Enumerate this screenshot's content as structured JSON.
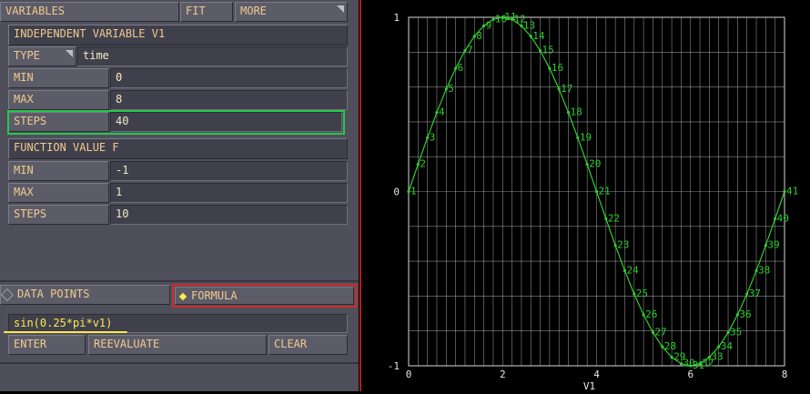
{
  "colors": {
    "panel": "#4f4f5b",
    "text": "#f2c98d",
    "plot_line": "#2fd02f",
    "grid": "#bdbdbd",
    "highlight_green": "#25c74a",
    "highlight_red": "#d22a2a"
  },
  "header": {
    "title": "VARIABLES",
    "fit_label": "FIT",
    "more_label": "MORE"
  },
  "independent": {
    "section_label": "INDEPENDENT VARIABLE V1",
    "type_label": "TYPE",
    "type_value": "time",
    "min_label": "MIN",
    "min_value": "0",
    "max_label": "MAX",
    "max_value": "8",
    "steps_label": "STEPS",
    "steps_value": "40"
  },
  "function": {
    "section_label": "FUNCTION VALUE F",
    "min_label": "MIN",
    "min_value": "-1",
    "max_label": "MAX",
    "max_value": "1",
    "steps_label": "STEPS",
    "steps_value": "10"
  },
  "mode": {
    "data_points_label": "DATA POINTS",
    "formula_label": "FORMULA",
    "selected": "FORMULA"
  },
  "formula": {
    "expression": "sin(0.25*pi*v1)"
  },
  "actions": {
    "enter_label": "ENTER",
    "reevaluate_label": "REEVALUATE",
    "clear_label": "CLEAR"
  },
  "chart_data": {
    "type": "line",
    "xlabel": "V1",
    "ylabel": "",
    "xlim": [
      0,
      8
    ],
    "ylim": [
      -1,
      1
    ],
    "x_ticks": [
      "0",
      "2",
      "4",
      "6",
      "8"
    ],
    "y_ticks": [
      "1",
      "0",
      "-1"
    ],
    "grid": true,
    "series": [
      {
        "x": [
          0,
          0.2,
          0.4,
          0.6,
          0.8,
          1,
          1.2,
          1.4,
          1.6,
          1.8,
          2,
          2.2,
          2.4,
          2.6,
          2.8,
          3,
          3.2,
          3.4,
          3.6,
          3.8,
          4,
          4.2,
          4.4,
          4.6,
          4.8,
          5,
          5.2,
          5.4,
          5.6,
          5.8,
          6,
          6.2,
          6.4,
          6.6,
          6.8,
          7,
          7.2,
          7.4,
          7.6,
          7.8,
          8
        ],
        "y": [
          0,
          0.156,
          0.309,
          0.454,
          0.588,
          0.707,
          0.809,
          0.891,
          0.951,
          0.988,
          1,
          0.988,
          0.951,
          0.891,
          0.809,
          0.707,
          0.588,
          0.454,
          0.309,
          0.156,
          0,
          -0.156,
          -0.309,
          -0.454,
          -0.588,
          -0.707,
          -0.809,
          -0.891,
          -0.951,
          -0.988,
          -1,
          -0.988,
          -0.951,
          -0.891,
          -0.809,
          -0.707,
          -0.588,
          -0.454,
          -0.309,
          -0.156,
          0
        ],
        "point_labels": [
          "1",
          "2",
          "3",
          "4",
          "5",
          "6",
          "7",
          "8",
          "9",
          "10",
          "11",
          "12",
          "13",
          "14",
          "15",
          "16",
          "17",
          "18",
          "19",
          "20",
          "21",
          "22",
          "23",
          "24",
          "25",
          "26",
          "27",
          "28",
          "29",
          "30",
          "31",
          "32",
          "33",
          "34",
          "35",
          "36",
          "37",
          "38",
          "39",
          "40",
          "41"
        ]
      }
    ]
  }
}
